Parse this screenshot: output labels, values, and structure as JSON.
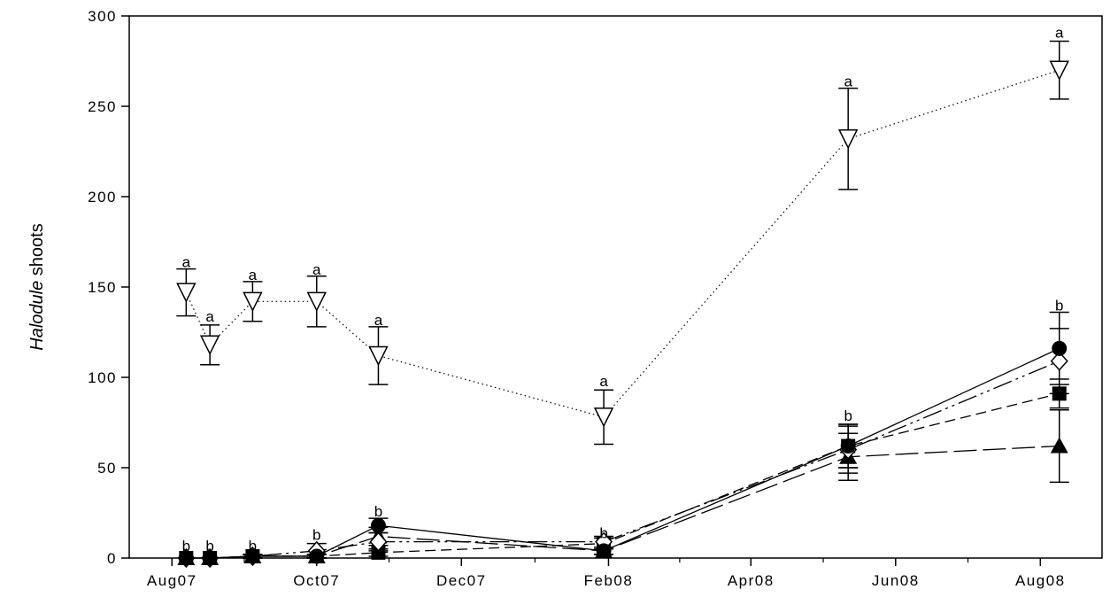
{
  "chart_data": {
    "type": "line",
    "ylabel_italic": "Halodule",
    "ylabel_rest": " shoots",
    "ylim": [
      0,
      300
    ],
    "yticks": [
      0,
      50,
      100,
      150,
      200,
      250,
      300
    ],
    "xlim": [
      "2007-07-14",
      "2008-08-27"
    ],
    "xticks": [
      {
        "date": "2007-08-01",
        "label": "Aug07"
      },
      {
        "date": "2007-10-01",
        "label": "Oct07"
      },
      {
        "date": "2007-12-01",
        "label": "Dec07"
      },
      {
        "date": "2008-02-01",
        "label": "Feb08"
      },
      {
        "date": "2008-04-01",
        "label": "Apr08"
      },
      {
        "date": "2008-06-01",
        "label": "Jun08"
      },
      {
        "date": "2008-08-01",
        "label": "Aug08"
      }
    ],
    "series": [
      {
        "marker": "triangle-down-open",
        "line": "dotted",
        "dates": [
          "2007-08-07",
          "2007-08-17",
          "2007-09-04",
          "2007-10-01",
          "2007-10-27",
          "2008-01-30",
          "2008-05-12",
          "2008-08-09"
        ],
        "values": [
          147,
          118,
          142,
          142,
          112,
          78,
          232,
          270
        ],
        "errors": [
          13,
          11,
          11,
          14,
          16,
          15,
          28,
          16
        ]
      },
      {
        "marker": "circle-filled",
        "line": "solid",
        "dates": [
          "2007-08-07",
          "2007-08-17",
          "2007-09-04",
          "2007-10-01",
          "2007-10-27",
          "2008-01-30",
          "2008-05-12",
          "2008-08-09"
        ],
        "values": [
          0,
          0,
          1,
          1,
          18,
          4,
          62,
          116
        ],
        "errors": [
          0,
          0,
          1,
          1,
          4,
          2,
          12,
          20
        ]
      },
      {
        "marker": "diamond-open",
        "line": "dash-dot-dot",
        "dates": [
          "2007-08-07",
          "2007-08-17",
          "2007-09-04",
          "2007-10-01",
          "2007-10-27",
          "2008-01-30",
          "2008-05-12",
          "2008-08-09"
        ],
        "values": [
          0,
          0,
          1,
          4,
          9,
          9,
          60,
          109
        ],
        "errors": [
          0,
          0,
          1,
          4,
          5,
          3,
          13,
          18
        ]
      },
      {
        "marker": "square-filled",
        "line": "short-dash",
        "dates": [
          "2007-08-07",
          "2007-08-17",
          "2007-09-04",
          "2007-10-01",
          "2007-10-27",
          "2008-01-30",
          "2008-05-12",
          "2008-08-09"
        ],
        "values": [
          0,
          0,
          1,
          1,
          3,
          8,
          62,
          91
        ],
        "errors": [
          0,
          0,
          1,
          1,
          2,
          3,
          12,
          8
        ]
      },
      {
        "marker": "triangle-up-filled",
        "line": "long-dash",
        "dates": [
          "2007-08-07",
          "2007-08-17",
          "2007-09-04",
          "2007-10-01",
          "2007-10-27",
          "2008-01-30",
          "2008-05-12",
          "2008-08-09"
        ],
        "values": [
          0,
          0,
          1,
          1,
          12,
          4,
          56,
          62
        ],
        "errors": [
          0,
          0,
          1,
          1,
          5,
          2,
          13,
          20
        ]
      }
    ],
    "annotations": [
      {
        "date": "2007-08-07",
        "value": 160,
        "text": "a"
      },
      {
        "date": "2007-08-17",
        "value": 130,
        "text": "a"
      },
      {
        "date": "2007-09-04",
        "value": 153,
        "text": "a"
      },
      {
        "date": "2007-10-01",
        "value": 156,
        "text": "a"
      },
      {
        "date": "2007-10-27",
        "value": 128,
        "text": "a"
      },
      {
        "date": "2008-01-30",
        "value": 94,
        "text": "a"
      },
      {
        "date": "2008-05-12",
        "value": 260,
        "text": "a"
      },
      {
        "date": "2008-08-09",
        "value": 287,
        "text": "a"
      },
      {
        "date": "2007-08-07",
        "value": 3,
        "text": "b"
      },
      {
        "date": "2007-08-17",
        "value": 3,
        "text": "b"
      },
      {
        "date": "2007-09-04",
        "value": 3,
        "text": "b"
      },
      {
        "date": "2007-10-01",
        "value": 9,
        "text": "b"
      },
      {
        "date": "2007-10-27",
        "value": 22,
        "text": "b"
      },
      {
        "date": "2008-01-30",
        "value": 10,
        "text": "b"
      },
      {
        "date": "2008-05-12",
        "value": 75,
        "text": "b"
      },
      {
        "date": "2008-08-09",
        "value": 136,
        "text": "b"
      }
    ]
  }
}
